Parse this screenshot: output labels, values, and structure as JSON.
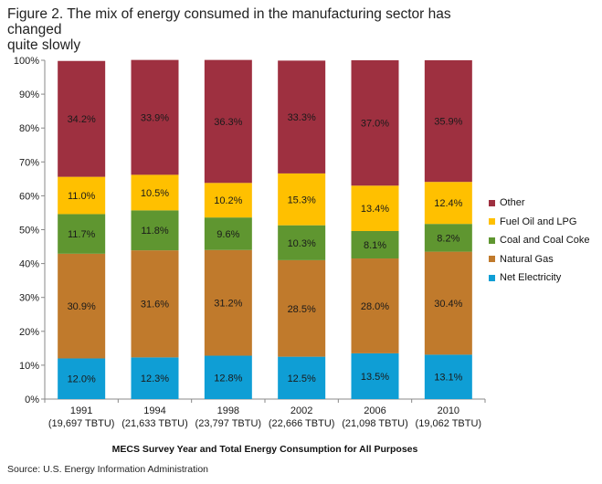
{
  "title_line1": "Figure 2. The mix of energy consumed in the manufacturing sector has changed",
  "title_line2": "quite slowly",
  "source": "Source: U.S. Energy Information Administration",
  "chart_data": {
    "type": "bar",
    "stacked": true,
    "percent_stacked": true,
    "xlabel": "MECS Survey Year and Total Energy Consumption for All Purposes",
    "ylabel": "",
    "ylim": [
      0,
      100
    ],
    "yticks": [
      "0%",
      "10%",
      "20%",
      "30%",
      "40%",
      "50%",
      "60%",
      "70%",
      "80%",
      "90%",
      "100%"
    ],
    "categories": [
      "1991",
      "1994",
      "1998",
      "2002",
      "2006",
      "2010"
    ],
    "category_sublabels": [
      "(19,697 TBTU)",
      "(21,633 TBTU)",
      "(23,797 TBTU)",
      "(22,666 TBTU)",
      "(21,098 TBTU)",
      "(19,062 TBTU)"
    ],
    "series": [
      {
        "name": "Net Electricity",
        "color": "#0f9ed5",
        "values": [
          12.0,
          12.3,
          12.8,
          12.5,
          13.5,
          13.1
        ],
        "labels": [
          "12.0%",
          "12.3%",
          "12.8%",
          "12.5%",
          "13.5%",
          "13.1%"
        ]
      },
      {
        "name": "Natural Gas",
        "color": "#c07a2c",
        "values": [
          30.9,
          31.6,
          31.2,
          28.5,
          28.0,
          30.4
        ],
        "labels": [
          "30.9%",
          "31.6%",
          "31.2%",
          "28.5%",
          "28.0%",
          "30.4%"
        ]
      },
      {
        "name": "Coal and Coal Coke",
        "color": "#5f9630",
        "values": [
          11.7,
          11.8,
          9.6,
          10.3,
          8.1,
          8.2
        ],
        "labels": [
          "11.7%",
          "11.8%",
          "9.6%",
          "10.3%",
          "8.1%",
          "8.2%"
        ]
      },
      {
        "name": "Fuel Oil and LPG",
        "color": "#ffc000",
        "values": [
          11.0,
          10.5,
          10.2,
          15.3,
          13.4,
          12.4
        ],
        "labels": [
          "11.0%",
          "10.5%",
          "10.2%",
          "15.3%",
          "13.4%",
          "12.4%"
        ]
      },
      {
        "name": "Other",
        "color": "#9e3040",
        "values": [
          34.2,
          33.9,
          36.3,
          33.3,
          37.0,
          35.9
        ],
        "labels": [
          "34.2%",
          "33.9%",
          "36.3%",
          "33.3%",
          "37.0%",
          "35.9%"
        ]
      }
    ],
    "legend_position": "right",
    "grid": false
  }
}
